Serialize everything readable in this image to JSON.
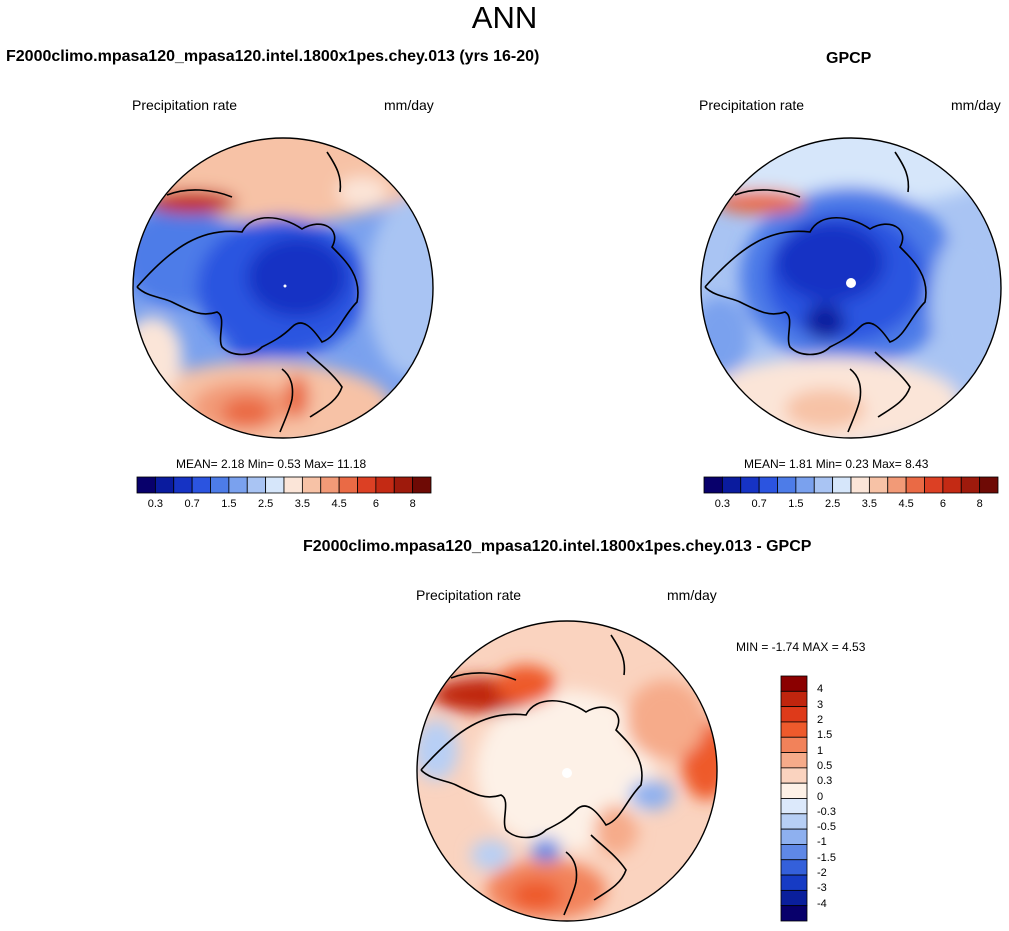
{
  "figure": {
    "title": "ANN",
    "test_title": "F2000climo.mpasa120_mpasa120.intel.1800x1pes.chey.013 (yrs 16-20)",
    "ref_title": "GPCP",
    "diff_title": "F2000climo.mpasa120_mpasa120.intel.1800x1pes.chey.013 - GPCP"
  },
  "panels": {
    "test": {
      "variable": "Precipitation rate",
      "units": "mm/day",
      "stats_text": "MEAN=  2.18  Min=  0.53  Max=  11.18",
      "colorbar_ticks": [
        "0.3",
        "0.7",
        "1.5",
        "2.5",
        "3.5",
        "4.5",
        "6",
        "8"
      ]
    },
    "ref": {
      "variable": "Precipitation rate",
      "units": "mm/day",
      "stats_text": "MEAN=  1.81  Min=  0.23  Max=  8.43",
      "colorbar_ticks": [
        "0.3",
        "0.7",
        "1.5",
        "2.5",
        "3.5",
        "4.5",
        "6",
        "8"
      ]
    },
    "diff": {
      "variable": "Precipitation rate",
      "units": "mm/day",
      "stats_text": "MIN =  -1.74 MAX =   4.53",
      "colorbar_ticks": [
        "4",
        "3",
        "2",
        "1.5",
        "1",
        "0.5",
        "0.3",
        "0",
        "-0.3",
        "-0.5",
        "-1",
        "-1.5",
        "-2",
        "-3",
        "-4"
      ]
    }
  },
  "colormaps": {
    "sequential": [
      "#08006b",
      "#0a1b9e",
      "#1633c4",
      "#2b54e0",
      "#4d7ce8",
      "#7aa1ee",
      "#a9c4f3",
      "#d6e6fa",
      "#fbe5d8",
      "#f7c2a6",
      "#f29a77",
      "#ea6a45",
      "#dc4024",
      "#c42a14",
      "#9e1a0c",
      "#6e0a05"
    ],
    "diverging": [
      "#8b0000",
      "#c0250e",
      "#de3a1a",
      "#ee5a2c",
      "#f2825a",
      "#f6ab8a",
      "#fad3bf",
      "#fdf1e7",
      "#dce9fb",
      "#b7cff5",
      "#8eb0ef",
      "#5f88e6",
      "#3460da",
      "#163bc4",
      "#0a1f9c",
      "#08006b"
    ]
  }
}
